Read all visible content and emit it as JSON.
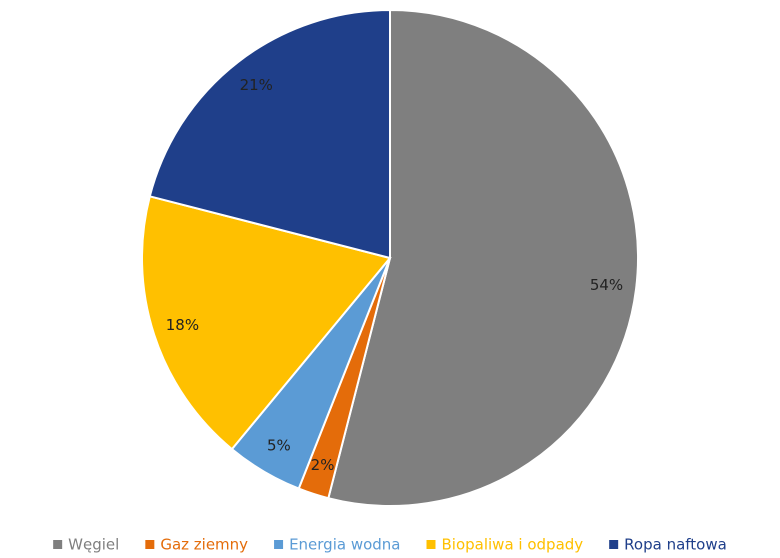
{
  "chart_data": {
    "type": "pie",
    "categories": [
      "Węgiel",
      "Gaz ziemny",
      "Energia wodna",
      "Biopaliwa i odpady",
      "Ropa naftowa"
    ],
    "values": [
      54,
      2,
      5,
      18,
      21
    ],
    "value_labels": [
      "54%",
      "2%",
      "5%",
      "18%",
      "21%"
    ],
    "colors": [
      "#7f7f7f",
      "#e46c0a",
      "#5b9bd5",
      "#ffc000",
      "#1f3f8a"
    ],
    "legend": "bottom"
  }
}
